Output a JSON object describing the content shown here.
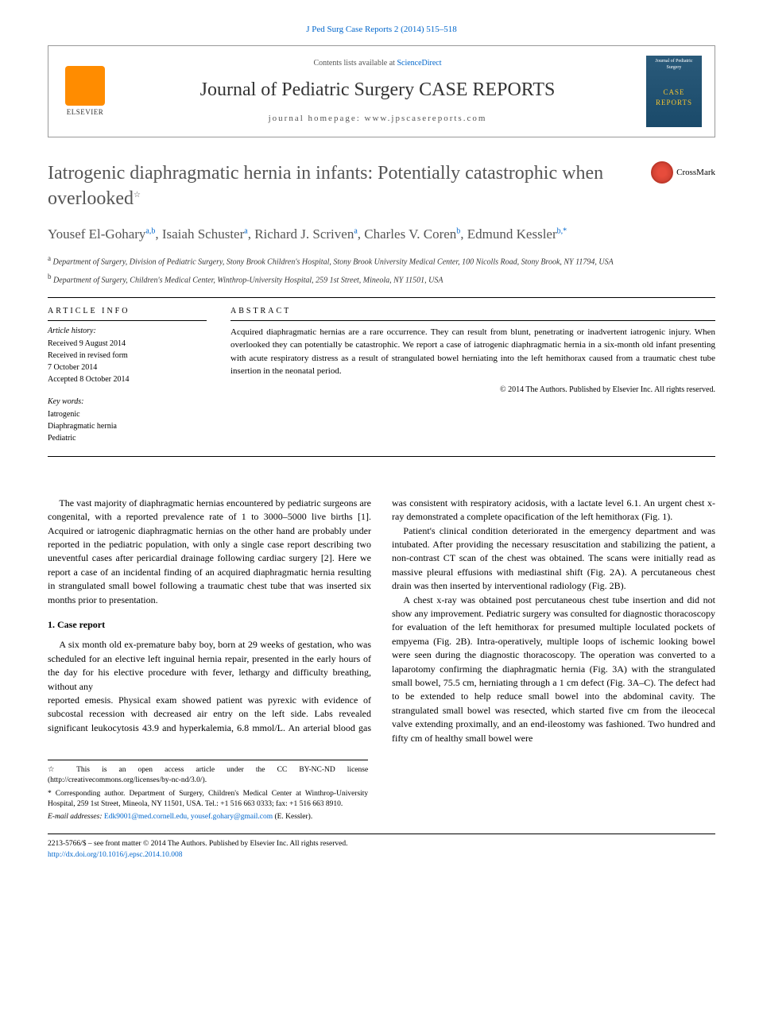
{
  "citation": "J Ped Surg Case Reports 2 (2014) 515–518",
  "masthead": {
    "contents_prefix": "Contents lists available at ",
    "contents_link": "ScienceDirect",
    "journal_name": "Journal of Pediatric Surgery CASE REPORTS",
    "homepage_prefix": "journal homepage: ",
    "homepage": "www.jpscasereports.com",
    "publisher": "ELSEVIER",
    "cover_top": "Journal of Pediatric Surgery",
    "cover_main": "CASE REPORTS"
  },
  "article": {
    "title": "Iatrogenic diaphragmatic hernia in infants: Potentially catastrophic when overlooked",
    "title_marker": "☆",
    "crossmark": "CrossMark",
    "authors_html": "Yousef El-Gohary|a,b|, Isaiah Schuster|a|, Richard J. Scriven|a|, Charles V. Coren|b|, Edmund Kessler|b,*|",
    "authors": [
      {
        "name": "Yousef El-Gohary",
        "affil": "a,b"
      },
      {
        "name": "Isaiah Schuster",
        "affil": "a"
      },
      {
        "name": "Richard J. Scriven",
        "affil": "a"
      },
      {
        "name": "Charles V. Coren",
        "affil": "b"
      },
      {
        "name": "Edmund Kessler",
        "affil": "b,*"
      }
    ],
    "affiliations": [
      {
        "marker": "a",
        "text": "Department of Surgery, Division of Pediatric Surgery, Stony Brook Children's Hospital, Stony Brook University Medical Center, 100 Nicolls Road, Stony Brook, NY 11794, USA"
      },
      {
        "marker": "b",
        "text": "Department of Surgery, Children's Medical Center, Winthrop-University Hospital, 259 1st Street, Mineola, NY 11501, USA"
      }
    ]
  },
  "info": {
    "heading": "ARTICLE INFO",
    "history_label": "Article history:",
    "history": [
      "Received 9 August 2014",
      "Received in revised form",
      "7 October 2014",
      "Accepted 8 October 2014"
    ],
    "keywords_label": "Key words:",
    "keywords": [
      "Iatrogenic",
      "Diaphragmatic hernia",
      "Pediatric"
    ]
  },
  "abstract": {
    "heading": "ABSTRACT",
    "text": "Acquired diaphragmatic hernias are a rare occurrence. They can result from blunt, penetrating or inadvertent iatrogenic injury. When overlooked they can potentially be catastrophic. We report a case of iatrogenic diaphragmatic hernia in a six-month old infant presenting with acute respiratory distress as a result of strangulated bowel herniating into the left hemithorax caused from a traumatic chest tube insertion in the neonatal period.",
    "copyright": "© 2014 The Authors. Published by Elsevier Inc. All rights reserved."
  },
  "body": {
    "intro": "The vast majority of diaphragmatic hernias encountered by pediatric surgeons are congenital, with a reported prevalence rate of 1 to 3000–5000 live births [1]. Acquired or iatrogenic diaphragmatic hernias on the other hand are probably under reported in the pediatric population, with only a single case report describing two uneventful cases after pericardial drainage following cardiac surgery [2]. Here we report a case of an incidental finding of an acquired diaphragmatic hernia resulting in strangulated small bowel following a traumatic chest tube that was inserted six months prior to presentation.",
    "section1_heading": "1. Case report",
    "section1_p1": "A six month old ex-premature baby boy, born at 29 weeks of gestation, who was scheduled for an elective left inguinal hernia repair, presented in the early hours of the day for his elective procedure with fever, lethargy and difficulty breathing, without any",
    "col2_p1": "reported emesis. Physical exam showed patient was pyrexic with evidence of subcostal recession with decreased air entry on the left side. Labs revealed significant leukocytosis 43.9 and hyperkalemia, 6.8 mmol/L. An arterial blood gas was consistent with respiratory acidosis, with a lactate level 6.1. An urgent chest x-ray demonstrated a complete opacification of the left hemithorax (Fig. 1).",
    "col2_p2": "Patient's clinical condition deteriorated in the emergency department and was intubated. After providing the necessary resuscitation and stabilizing the patient, a non-contrast CT scan of the chest was obtained. The scans were initially read as massive pleural effusions with mediastinal shift (Fig. 2A). A percutaneous chest drain was then inserted by interventional radiology (Fig. 2B).",
    "col2_p3": "A chest x-ray was obtained post percutaneous chest tube insertion and did not show any improvement. Pediatric surgery was consulted for diagnostic thoracoscopy for evaluation of the left hemithorax for presumed multiple loculated pockets of empyema (Fig. 2B). Intra-operatively, multiple loops of ischemic looking bowel were seen during the diagnostic thoracoscopy. The operation was converted to a laparotomy confirming the diaphragmatic hernia (Fig. 3A) with the strangulated small bowel, 75.5 cm, herniating through a 1 cm defect (Fig. 3A–C). The defect had to be extended to help reduce small bowel into the abdominal cavity. The strangulated small bowel was resected, which started five cm from the ileocecal valve extending proximally, and an end-ileostomy was fashioned. Two hundred and fifty cm of healthy small bowel were"
  },
  "footnotes": {
    "open_access": "☆ This is an open access article under the CC BY-NC-ND license (http://creativecommons.org/licenses/by-nc-nd/3.0/).",
    "corresponding": "* Corresponding author. Department of Surgery, Children's Medical Center at Winthrop-University Hospital, 259 1st Street, Mineola, NY 11501, USA. Tel.: +1 516 663 0333; fax: +1 516 663 8910.",
    "email_label": "E-mail addresses:",
    "emails": "Edk9001@med.cornell.edu, yousef.gohary@gmail.com",
    "email_paren": "(E. Kessler)."
  },
  "bottom": {
    "issn": "2213-5766/$ – see front matter © 2014 The Authors. Published by Elsevier Inc. All rights reserved.",
    "doi": "http://dx.doi.org/10.1016/j.epsc.2014.10.008"
  },
  "colors": {
    "link": "#0066cc",
    "elsevier_orange": "#ff8c00",
    "cover_bg": "#2a5a7a",
    "cover_accent": "#f4c430",
    "crossmark": "#c0392b",
    "title_gray": "#555555"
  }
}
